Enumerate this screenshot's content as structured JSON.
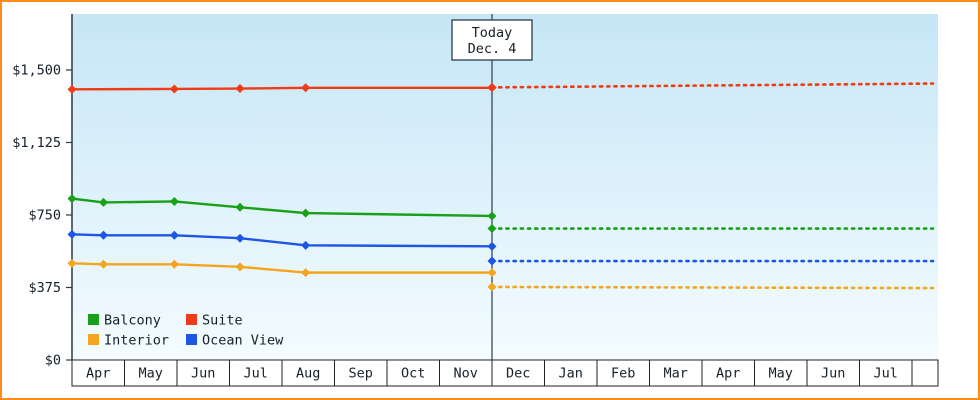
{
  "frame": {
    "border_color": "#ff8c1a",
    "background": "#ffffff"
  },
  "chart_data": {
    "type": "line",
    "grid": false,
    "legend_position": "bottom-left",
    "plot_bg_top": "#c6e6f6",
    "plot_bg_bottom": "#f4fcff",
    "axis_color": "#2b3a45",
    "today_line_color": "#3a4a55",
    "x_categories": [
      "Apr",
      "May",
      "Jun",
      "Jul",
      "Aug",
      "Sep",
      "Oct",
      "Nov",
      "Dec",
      "Jan",
      "Feb",
      "Mar",
      "Apr",
      "May",
      "Jun",
      "Jul"
    ],
    "y_ticks": [
      {
        "label": "$0",
        "value": 0
      },
      {
        "label": "$375",
        "value": 375
      },
      {
        "label": "$750",
        "value": 750
      },
      {
        "label": "$1,125",
        "value": 1125
      },
      {
        "label": "$1,500",
        "value": 1500
      }
    ],
    "y_range": [
      0,
      1500
    ],
    "today": {
      "line1": "Today",
      "line2": "Dec. 4",
      "month_index": 8
    },
    "series": [
      {
        "name": "Suite",
        "color": "#f03b17",
        "history": [
          [
            0,
            1400
          ],
          [
            1.95,
            1402
          ],
          [
            3.2,
            1404
          ],
          [
            4.45,
            1408
          ],
          [
            8,
            1408
          ]
        ],
        "forecast": [
          [
            8,
            1410
          ],
          [
            16.4,
            1430
          ]
        ]
      },
      {
        "name": "Balcony",
        "color": "#18a018",
        "history": [
          [
            0,
            835
          ],
          [
            0.6,
            815
          ],
          [
            1.95,
            820
          ],
          [
            3.2,
            790
          ],
          [
            4.45,
            760
          ],
          [
            8,
            745
          ]
        ],
        "forecast": [
          [
            8,
            680
          ],
          [
            16.4,
            680
          ]
        ]
      },
      {
        "name": "Ocean View",
        "color": "#1d56e5",
        "history": [
          [
            0,
            650
          ],
          [
            0.6,
            645
          ],
          [
            1.95,
            645
          ],
          [
            3.2,
            630
          ],
          [
            4.45,
            593
          ],
          [
            8,
            588
          ]
        ],
        "forecast": [
          [
            8,
            512
          ],
          [
            16.4,
            512
          ]
        ]
      },
      {
        "name": "Interior",
        "color": "#f5a51d",
        "history": [
          [
            0,
            500
          ],
          [
            0.6,
            495
          ],
          [
            1.95,
            495
          ],
          [
            3.2,
            482
          ],
          [
            4.45,
            452
          ],
          [
            8,
            452
          ]
        ],
        "forecast": [
          [
            8,
            378
          ],
          [
            16.4,
            372
          ]
        ]
      }
    ],
    "legend": [
      {
        "label": "Balcony",
        "color": "#18a018"
      },
      {
        "label": "Suite",
        "color": "#f03b17"
      },
      {
        "label": "Interior",
        "color": "#f5a51d"
      },
      {
        "label": "Ocean View",
        "color": "#1d56e5"
      }
    ]
  }
}
